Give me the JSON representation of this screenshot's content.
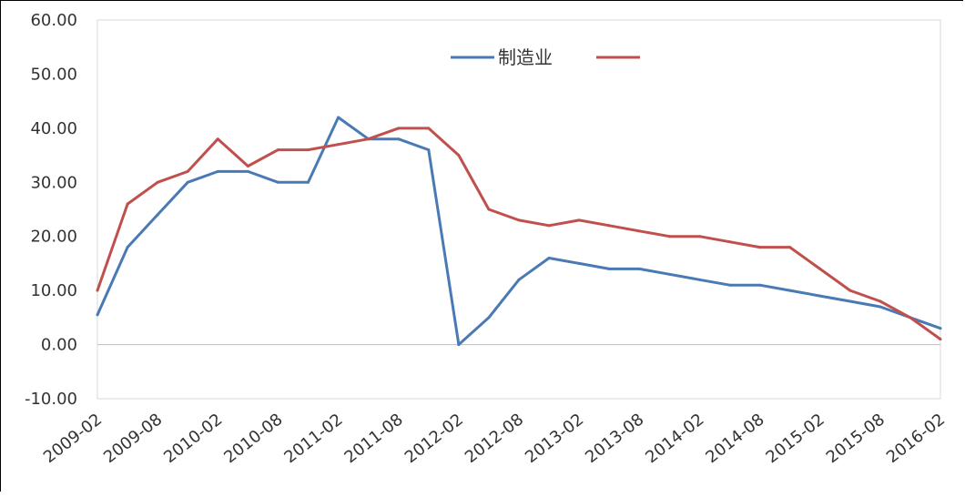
{
  "chart_data": {
    "type": "line",
    "x": [
      "2009-02",
      "2009-05",
      "2009-08",
      "2009-11",
      "2010-02",
      "2010-05",
      "2010-08",
      "2010-11",
      "2011-02",
      "2011-05",
      "2011-08",
      "2011-11",
      "2012-02",
      "2012-05",
      "2012-08",
      "2012-11",
      "2013-02",
      "2013-05",
      "2013-08",
      "2013-11",
      "2014-02",
      "2014-05",
      "2014-08",
      "2014-11",
      "2015-02",
      "2015-05",
      "2015-08",
      "2015-11",
      "2016-02"
    ],
    "xticks": [
      "2009-02",
      "2009-08",
      "2010-02",
      "2010-08",
      "2011-02",
      "2011-08",
      "2012-02",
      "2012-08",
      "2013-02",
      "2013-08",
      "2014-02",
      "2014-08",
      "2015-02",
      "2015-08",
      "2016-02"
    ],
    "yticks": [
      "60.00",
      "50.00",
      "40.00",
      "30.00",
      "20.00",
      "10.00",
      "0.00",
      "-10.00"
    ],
    "ylim": [
      -10,
      60
    ],
    "legend_position": "top-right",
    "series": [
      {
        "name": "制造业",
        "color": "#4a7ab4",
        "values": [
          5.5,
          18,
          24,
          30,
          32,
          32,
          30,
          30,
          42,
          38,
          38,
          36,
          0,
          5,
          12,
          16,
          15,
          14,
          14,
          13,
          12,
          11,
          11,
          10,
          9,
          8,
          7,
          5,
          3
        ]
      },
      {
        "name": "",
        "color": "#c0504d",
        "values": [
          10,
          26,
          30,
          32,
          38,
          33,
          36,
          36,
          37,
          38,
          40,
          40,
          35,
          25,
          23,
          22,
          23,
          22,
          21,
          20,
          20,
          19,
          18,
          18,
          14,
          10,
          8,
          5,
          1
        ]
      }
    ]
  }
}
